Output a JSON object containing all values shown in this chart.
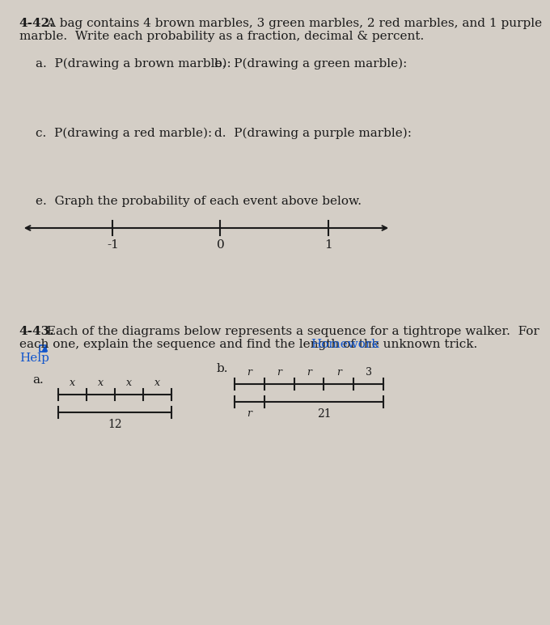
{
  "bg_color": "#d4cec6",
  "text_color": "#1a1a1a",
  "bold_442": "4-42.",
  "text_442_line1": " A bag contains 4 brown marbles, 3 green marbles, 2 red marbles, and 1 purple",
  "text_442_line2": "marble.  Write each probability as a fraction, decimal & percent.",
  "label_a": "a.  P(drawing a brown marble):",
  "label_b": "b.  P(drawing a green marble):",
  "label_c": "c.  P(drawing a red marble):",
  "label_d": "d.  P(drawing a purple marble):",
  "label_e": "e.  Graph the probability of each event above below.",
  "number_line_ticks": [
    -1,
    0,
    1
  ],
  "bold_443": "4-43.",
  "text_443_line1": " Each of the diagrams below represents a sequence for a tightrope walker.  For",
  "text_443_line2": "each one, explain the sequence and find the length of the unknown trick.  ",
  "homework_link": "Homework",
  "help_link": "Help",
  "sub_a_label": "a.",
  "sub_b_label": "b.",
  "diagram_a_top_labels": [
    "x",
    "x",
    "x",
    "x"
  ],
  "diagram_a_bottom_label": "12",
  "diagram_b_top_labels": [
    "r",
    "r",
    "r",
    "r",
    "3"
  ],
  "diagram_b_bottom_left_label": "r",
  "diagram_b_bottom_label": "21"
}
